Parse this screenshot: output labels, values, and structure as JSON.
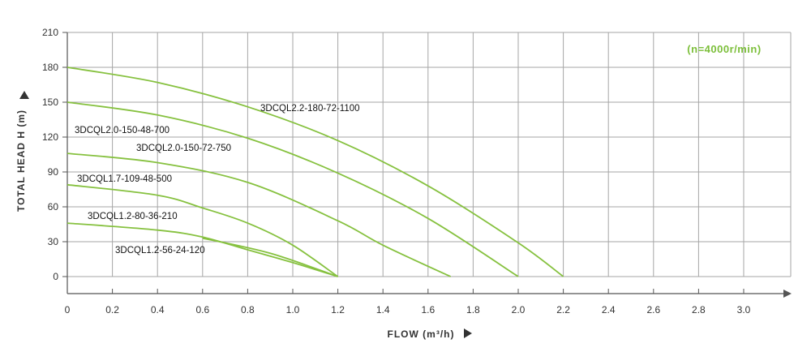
{
  "chart_data": {
    "type": "line",
    "xlabel": "FLOW (m³/h)",
    "ylabel": "TOTAL HEAD H (m)",
    "annotation": "(n=4000r/min)",
    "xlim": [
      0,
      3.2
    ],
    "ylim": [
      0,
      210
    ],
    "x_ticks": [
      "0",
      "0.2",
      "0.4",
      "0.6",
      "0.8",
      "1.0",
      "1.2",
      "1.4",
      "1.6",
      "1.8",
      "2.0",
      "2.2",
      "2.4",
      "2.6",
      "2.8",
      "3.0"
    ],
    "y_ticks": [
      "0",
      "30",
      "60",
      "90",
      "120",
      "150",
      "180",
      "210"
    ],
    "grid": true,
    "series": [
      {
        "name": "3DCQL2.2-180-72-1100",
        "x": [
          0,
          0.4,
          0.8,
          1.2,
          1.6,
          2.0,
          2.2
        ],
        "y": [
          180,
          167,
          146,
          117,
          78,
          29,
          0
        ]
      },
      {
        "name": "3DCQL2.0-150-48-700",
        "x": [
          0,
          0.4,
          0.8,
          1.2,
          1.6,
          2.0
        ],
        "y": [
          150,
          139,
          119,
          89,
          50,
          0
        ]
      },
      {
        "name": "3DCQL2.0-150-72-750",
        "x": [
          0,
          0.4,
          0.8,
          1.2,
          1.4,
          1.7
        ],
        "y": [
          106,
          98,
          81,
          48,
          27,
          0
        ]
      },
      {
        "name": "3DCQL1.7-109-48-500",
        "x": [
          0,
          0.4,
          0.6,
          0.8,
          1.0,
          1.2
        ],
        "y": [
          79,
          70,
          59,
          46,
          27,
          0
        ]
      },
      {
        "name": "3DCQL1.2-80-36-210",
        "x": [
          0,
          0.4,
          0.6,
          0.8,
          1.0,
          1.2
        ],
        "y": [
          46,
          40,
          34,
          23,
          12,
          0
        ]
      },
      {
        "name": "3DCQL1.2-56-24-120",
        "x": [
          0.6,
          0.9,
          1.2
        ],
        "y": [
          33,
          20,
          0
        ]
      }
    ],
    "colors": {
      "curve": "#86c13f",
      "grid": "#a6a6a6",
      "axis": "#555555",
      "annotation": "#7cbf3a"
    }
  }
}
